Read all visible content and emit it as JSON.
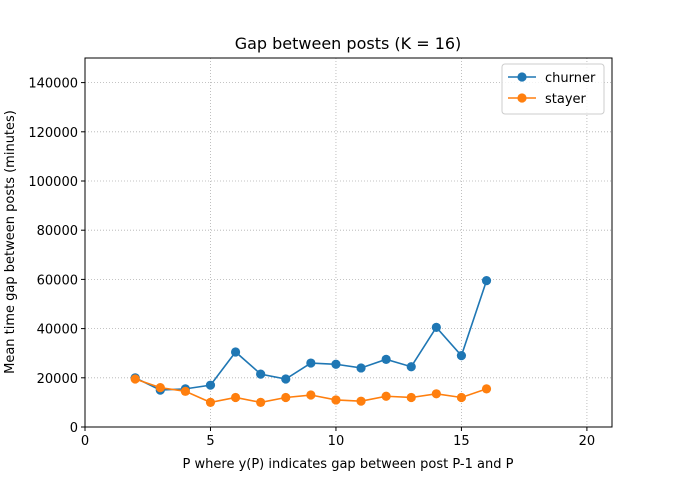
{
  "chart_data": {
    "type": "line",
    "title": "Gap between posts (K = 16)",
    "xlabel": "P where y(P) indicates gap between post P-1 and P",
    "ylabel": "Mean time gap between posts (minutes)",
    "xlim": [
      0,
      21
    ],
    "ylim": [
      0,
      150000
    ],
    "xticks": [
      0,
      5,
      10,
      15,
      20
    ],
    "yticks": [
      0,
      20000,
      40000,
      60000,
      80000,
      100000,
      120000,
      140000
    ],
    "grid": true,
    "legend_position": "top-right",
    "series": [
      {
        "name": "churner",
        "color": "#1f77b4",
        "x": [
          2,
          3,
          4,
          5,
          6,
          7,
          8,
          9,
          10,
          11,
          12,
          13,
          14,
          15,
          16
        ],
        "y": [
          20000,
          15000,
          15500,
          17000,
          30500,
          21500,
          19500,
          26000,
          25500,
          24000,
          27500,
          24500,
          40500,
          29000,
          59500
        ]
      },
      {
        "name": "stayer",
        "color": "#ff7f0e",
        "x": [
          2,
          3,
          4,
          5,
          6,
          7,
          8,
          9,
          10,
          11,
          12,
          13,
          14,
          15,
          16
        ],
        "y": [
          19500,
          16000,
          14500,
          10000,
          12000,
          10000,
          12000,
          13000,
          11000,
          10500,
          12500,
          12000,
          13500,
          12000,
          15500
        ]
      }
    ]
  }
}
